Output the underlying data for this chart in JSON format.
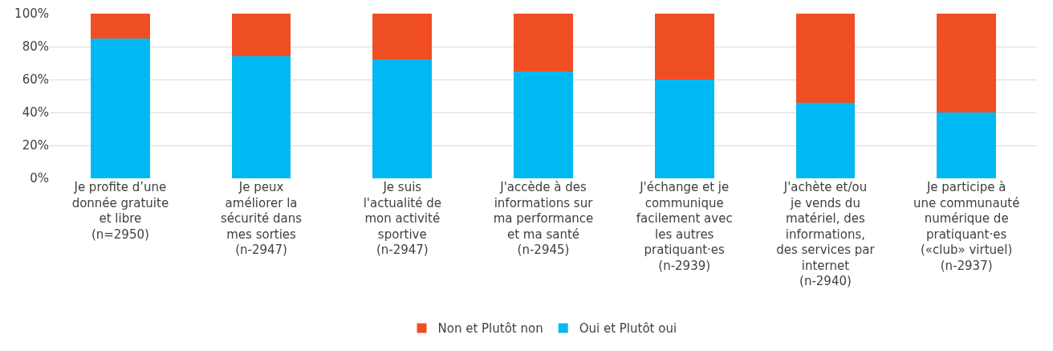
{
  "chart_data": {
    "type": "bar",
    "stacked": true,
    "categories": [
      "Je profite d’une donnée gratuite et libre (n=2950)",
      "Je peux améliorer la sécurité dans mes sorties (n-2947)",
      "Je suis l'actualité de mon activité sportive (n-2947)",
      "J'accède à des informations sur ma performance et ma santé (n-2945)",
      "J'échange et je communique facilement avec les autres pratiquant·es (n-2939)",
      "J'achète et/ou je vends du matériel, des informations, des services par internet (n-2940)",
      "Je participe à une communauté numérique de pratiquant·es («club» virtuel) (n-2937)"
    ],
    "series": [
      {
        "name": "Oui et Plutôt oui",
        "color": "#00b9f2",
        "values": [
          85,
          74,
          72,
          65,
          60,
          46,
          40
        ]
      },
      {
        "name": "Non et Plutôt non",
        "color": "#f04e23",
        "values": [
          15,
          26,
          28,
          35,
          40,
          54,
          60
        ]
      }
    ],
    "ylim": [
      0,
      100
    ],
    "yticks": [
      {
        "value": 0,
        "label": "0%"
      },
      {
        "value": 20,
        "label": "20%"
      },
      {
        "value": 40,
        "label": "40%"
      },
      {
        "value": 60,
        "label": "60%"
      },
      {
        "value": 80,
        "label": "80%"
      },
      {
        "value": 100,
        "label": "100%"
      }
    ],
    "grid": "y",
    "legend": "bottom"
  }
}
